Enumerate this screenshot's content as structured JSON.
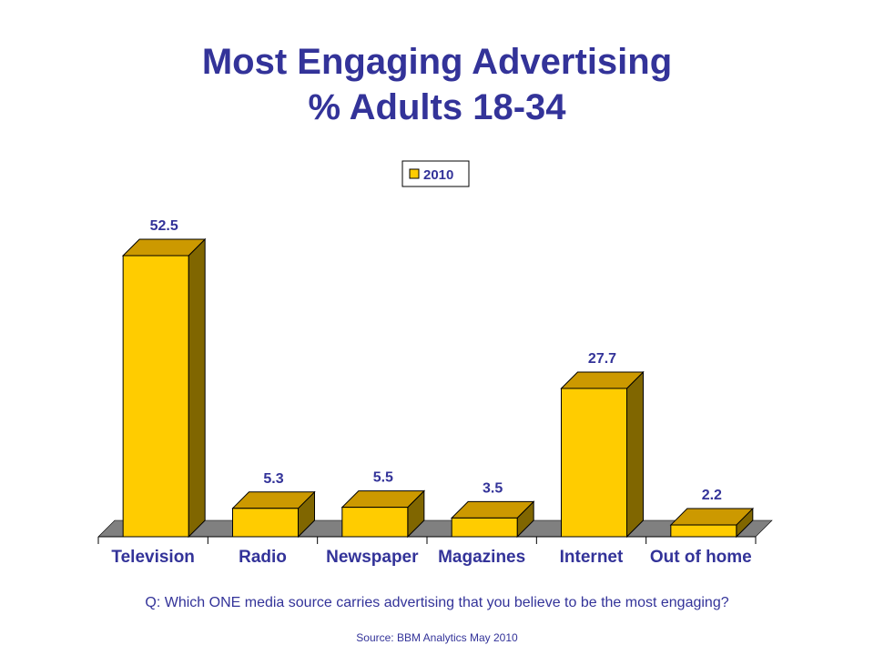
{
  "chart_data": {
    "type": "bar",
    "title": "Most Engaging Advertising",
    "subtitle": "% Adults 18-34",
    "categories": [
      "Television",
      "Radio",
      "Newspaper",
      "Magazines",
      "Internet",
      "Out of home"
    ],
    "series": [
      {
        "name": "2010",
        "values": [
          52.5,
          5.3,
          5.5,
          3.5,
          27.7,
          2.2
        ]
      }
    ],
    "data_labels": [
      "52.5",
      "5.3",
      "5.5",
      "3.5",
      "27.7",
      "2.2"
    ],
    "legend_position": "top-center",
    "three_d": true,
    "grid": false,
    "colors": {
      "bar_front": "#FFCC00",
      "bar_top": "#CC9900",
      "bar_side": "#806600",
      "floor": "#808080",
      "text": "#333399"
    }
  },
  "footer": {
    "question": "Q: Which ONE media source carries advertising that you believe to be the most engaging?",
    "source": "Source: BBM Analytics May 2010"
  }
}
